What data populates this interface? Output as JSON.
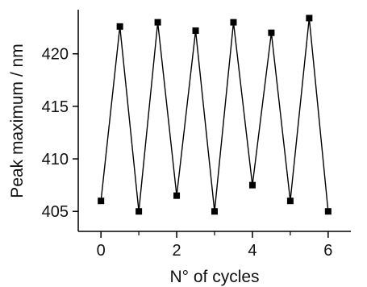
{
  "chart_data": {
    "type": "line",
    "title": "",
    "xlabel": "N° of cycles",
    "ylabel": "Peak maximum / nm",
    "xlim": [
      -0.6,
      6.6
    ],
    "ylim": [
      403.1,
      424.2
    ],
    "x_ticks": [
      0,
      2,
      4,
      6
    ],
    "x_tick_labels": [
      "0",
      "2",
      "4",
      "6"
    ],
    "x_minor_ticks": [
      1,
      3,
      5
    ],
    "y_ticks": [
      405,
      410,
      415,
      420
    ],
    "y_tick_labels": [
      "405",
      "410",
      "415",
      "420"
    ],
    "grid": false,
    "legend": "none",
    "marker": "square",
    "line_color": "#000000",
    "marker_color": "#000000",
    "series": [
      {
        "x": [
          0,
          0.5,
          1,
          1.5,
          2,
          2.5,
          3,
          3.5,
          4,
          4.5,
          5,
          5.5,
          6
        ],
        "y": [
          406.0,
          422.6,
          405.0,
          423.0,
          406.5,
          422.2,
          405.0,
          423.0,
          407.5,
          422.0,
          406.0,
          423.4,
          405.0
        ]
      }
    ]
  }
}
